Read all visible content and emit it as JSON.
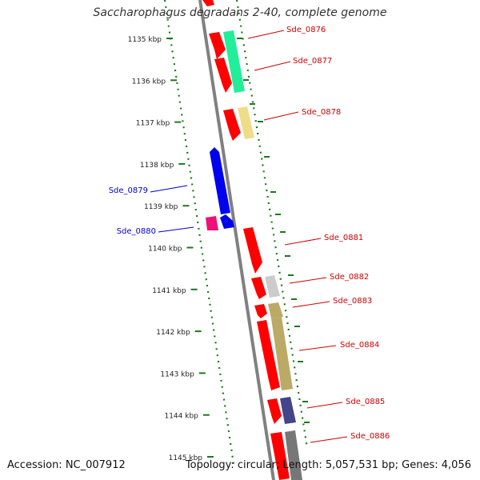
{
  "title": "Saccharophagus degradans 2-40, complete genome",
  "footer": {
    "accession": "Accession: NC_007912",
    "summary": "Topology: circular; Length: 5,057,531 bp; Genes: 4,056"
  },
  "colors": {
    "backbone": "#808080",
    "tick": "#1a7a1a",
    "label_red": "#cc0000",
    "label_blue": "#0000cc"
  },
  "ticks": [
    "1135 kbp",
    "1136 kbp",
    "1137 kbp",
    "1138 kbp",
    "1139 kbp",
    "1140 kbp",
    "1141 kbp",
    "1142 kbp",
    "1143 kbp",
    "1144 kbp",
    "1145 kbp"
  ],
  "genes": [
    {
      "name": "Sde_0876",
      "label_color": "#cc0000"
    },
    {
      "name": "Sde_0877",
      "label_color": "#cc0000"
    },
    {
      "name": "Sde_0878",
      "label_color": "#cc0000"
    },
    {
      "name": "Sde_0879",
      "label_color": "#0000cc"
    },
    {
      "name": "Sde_0880",
      "label_color": "#0000cc"
    },
    {
      "name": "Sde_0881",
      "label_color": "#cc0000"
    },
    {
      "name": "Sde_0882",
      "label_color": "#cc0000"
    },
    {
      "name": "Sde_0883",
      "label_color": "#cc0000"
    },
    {
      "name": "Sde_0884",
      "label_color": "#cc0000"
    },
    {
      "name": "Sde_0885",
      "label_color": "#cc0000"
    },
    {
      "name": "Sde_0886",
      "label_color": "#cc0000"
    }
  ]
}
